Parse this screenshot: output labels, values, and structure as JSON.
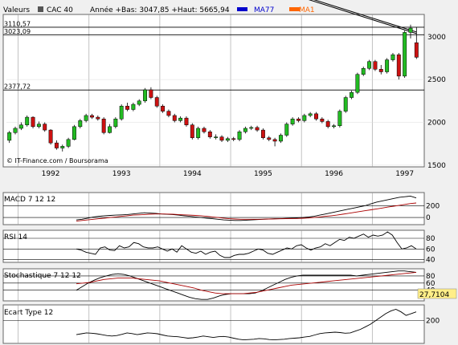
{
  "header": {
    "label": "Valeurs",
    "symbol": "CAC 40",
    "stats": "Année +Bas: 3047,85 +Haut: 5665,94",
    "ma77_label": "MA77",
    "ma1_label": "MA1",
    "ma77_color": "#0000cc",
    "ma1_color": "#ff6600"
  },
  "source": "© IT-Finance.com / Boursorama",
  "colors": {
    "up": "#22bb22",
    "down": "#cc1111",
    "grid": "#999999",
    "panel_bg": "#ffffff",
    "page_bg": "#f0f0f0",
    "border": "#666666",
    "signal": "#aa0000",
    "highlight_box": "#ffee88"
  },
  "chart_data": [
    {
      "type": "candlestick",
      "title": "CAC 40",
      "x": [
        "1991-11",
        "1991-12",
        "1992-01",
        "1992-02",
        "1992-03",
        "1992-04",
        "1992-05",
        "1992-06",
        "1992-07",
        "1992-08",
        "1992-09",
        "1992-10",
        "1992-11",
        "1992-12",
        "1993-01",
        "1993-02",
        "1993-03",
        "1993-04",
        "1993-05",
        "1993-06",
        "1993-07",
        "1993-08",
        "1993-09",
        "1993-10",
        "1993-11",
        "1993-12",
        "1994-01",
        "1994-02",
        "1994-03",
        "1994-04",
        "1994-05",
        "1994-06",
        "1994-07",
        "1994-08",
        "1994-09",
        "1994-10",
        "1994-11",
        "1994-12",
        "1995-01",
        "1995-02",
        "1995-03",
        "1995-04",
        "1995-05",
        "1995-06",
        "1995-07",
        "1995-08",
        "1995-09",
        "1995-10",
        "1995-11",
        "1995-12",
        "1996-01",
        "1996-02",
        "1996-03",
        "1996-04",
        "1996-05",
        "1996-06",
        "1996-07",
        "1996-08",
        "1996-09",
        "1996-10",
        "1996-11",
        "1996-12",
        "1997-01",
        "1997-02",
        "1997-03",
        "1997-04",
        "1997-05",
        "1997-06",
        "1997-07",
        "1997-08"
      ],
      "open": [
        1790,
        1880,
        1930,
        1970,
        2060,
        1950,
        1980,
        1910,
        1760,
        1700,
        1720,
        1800,
        1950,
        2020,
        2080,
        2060,
        2040,
        1880,
        1950,
        2040,
        2190,
        2150,
        2210,
        2250,
        2380,
        2290,
        2190,
        2130,
        2080,
        2020,
        2050,
        1970,
        1820,
        1930,
        1890,
        1830,
        1830,
        1790,
        1810,
        1800,
        1890,
        1930,
        1940,
        1910,
        1820,
        1800,
        1780,
        1850,
        1980,
        2040,
        2020,
        2080,
        2100,
        2040,
        2010,
        1950,
        1960,
        2130,
        2290,
        2350,
        2560,
        2630,
        2710,
        2620,
        2590,
        2730,
        2790,
        2540,
        3050,
        2930
      ],
      "close": [
        1880,
        1930,
        1970,
        2060,
        1950,
        1980,
        1910,
        1760,
        1700,
        1720,
        1800,
        1950,
        2020,
        2080,
        2060,
        2040,
        1880,
        1950,
        2040,
        2190,
        2150,
        2210,
        2250,
        2380,
        2290,
        2190,
        2130,
        2080,
        2020,
        2050,
        1970,
        1820,
        1930,
        1890,
        1830,
        1830,
        1790,
        1810,
        1800,
        1890,
        1930,
        1940,
        1910,
        1820,
        1800,
        1780,
        1850,
        1980,
        2040,
        2020,
        2080,
        2100,
        2040,
        2010,
        1950,
        1960,
        2130,
        2290,
        2350,
        2560,
        2630,
        2710,
        2620,
        2590,
        2730,
        2790,
        2540,
        3050,
        3100,
        2760
      ],
      "high": [
        1900,
        1950,
        2000,
        2080,
        2070,
        2010,
        2000,
        1920,
        1790,
        1740,
        1820,
        1970,
        2040,
        2100,
        2100,
        2080,
        2060,
        1980,
        2060,
        2210,
        2230,
        2230,
        2270,
        2400,
        2410,
        2310,
        2210,
        2150,
        2100,
        2070,
        2070,
        1990,
        1950,
        1950,
        1910,
        1860,
        1850,
        1830,
        1830,
        1910,
        1950,
        1960,
        1960,
        1930,
        1840,
        1820,
        1870,
        2000,
        2060,
        2060,
        2100,
        2120,
        2120,
        2060,
        2030,
        1980,
        2150,
        2310,
        2370,
        2580,
        2650,
        2730,
        2730,
        2670,
        2750,
        2810,
        2810,
        3070,
        3140,
        3110
      ],
      "low": [
        1760,
        1860,
        1910,
        1950,
        1930,
        1930,
        1890,
        1740,
        1680,
        1660,
        1700,
        1790,
        1930,
        2000,
        2040,
        2020,
        1860,
        1870,
        1930,
        2020,
        2130,
        2130,
        2190,
        2230,
        2270,
        2170,
        2110,
        2060,
        2000,
        2000,
        1950,
        1800,
        1800,
        1870,
        1810,
        1800,
        1770,
        1770,
        1780,
        1780,
        1870,
        1910,
        1890,
        1800,
        1780,
        1720,
        1760,
        1830,
        1960,
        2000,
        2000,
        2060,
        2020,
        1990,
        1930,
        1930,
        1940,
        2110,
        2270,
        2330,
        2540,
        2610,
        2600,
        2560,
        2570,
        2710,
        2500,
        2520,
        2980,
        2740
      ],
      "ma77": [
        2120,
        2117,
        2114,
        2111,
        2108,
        2105,
        2102,
        2099,
        2096,
        2093,
        2090,
        2087,
        2084,
        2081,
        2078,
        2075,
        2072,
        2069,
        2066,
        2063,
        2060,
        2057,
        2054,
        2051,
        2048,
        2045,
        2042,
        2039,
        2036,
        2033,
        2030,
        2027,
        2024,
        2021,
        2018,
        2015,
        2012,
        2009,
        2006,
        2003,
        2000,
        1997,
        1994,
        1991,
        1988,
        1985,
        1982,
        1979,
        1976,
        1973,
        1970,
        1967,
        1964,
        1961,
        1958,
        1955,
        1952,
        1949,
        1946,
        1943,
        1940,
        1937,
        1934,
        1931,
        1928,
        1925,
        1922,
        1919,
        1916,
        1913
      ],
      "categories": [
        "1992",
        "1993",
        "1994",
        "1995",
        "1996",
        "1997"
      ],
      "year_start_index": [
        2,
        14,
        26,
        38,
        50,
        62
      ],
      "yticks": [
        1500,
        2000,
        2500,
        3000
      ],
      "ylim": [
        1480,
        3260
      ],
      "levels": [
        {
          "label": "3110,57",
          "value": 3110.57
        },
        {
          "label": "3023,09",
          "value": 3023.09
        },
        {
          "label": "2377,72",
          "value": 2377.72
        }
      ],
      "trendline": {
        "from": [
          31,
          3880
        ],
        "to": [
          69,
          3055
        ]
      },
      "grid": true
    },
    {
      "type": "line",
      "title": "MACD 7 12 12",
      "series": [
        {
          "values": [
            -40,
            -30,
            -10,
            10,
            20,
            30,
            35,
            40,
            45,
            50,
            60,
            70,
            80,
            75,
            70,
            60,
            55,
            50,
            40,
            30,
            20,
            10,
            0,
            -10,
            -20,
            -30,
            -40,
            -45,
            -50,
            -50,
            -45,
            -40,
            -35,
            -30,
            -25,
            -20,
            -20,
            -15,
            -10,
            -5,
            0,
            10,
            20,
            40,
            60,
            80,
            100,
            120,
            140,
            160,
            180,
            200,
            230,
            260,
            280,
            300,
            320,
            340,
            350,
            360,
            330
          ]
        },
        {
          "values": [
            -60,
            -50,
            -40,
            -30,
            -20,
            -10,
            0,
            10,
            20,
            30,
            40,
            45,
            50,
            55,
            60,
            60,
            58,
            55,
            50,
            45,
            40,
            35,
            30,
            20,
            10,
            0,
            -10,
            -20,
            -25,
            -30,
            -30,
            -30,
            -30,
            -28,
            -26,
            -24,
            -22,
            -20,
            -18,
            -16,
            -12,
            -8,
            0,
            10,
            20,
            30,
            40,
            55,
            70,
            85,
            100,
            115,
            130,
            145,
            160,
            175,
            190,
            205,
            220,
            235,
            245
          ]
        }
      ],
      "yticks": [
        0,
        200
      ],
      "ylim": [
        -120,
        420
      ],
      "grid": true
    },
    {
      "type": "line",
      "title": "RSI 14",
      "series": [
        {
          "values": [
            60,
            58,
            54,
            52,
            50,
            62,
            64,
            58,
            57,
            66,
            62,
            64,
            72,
            70,
            64,
            62,
            62,
            64,
            60,
            56,
            60,
            54,
            66,
            60,
            54,
            52,
            56,
            50,
            54,
            56,
            48,
            44,
            44,
            48,
            50,
            50,
            52,
            56,
            60,
            58,
            52,
            50,
            54,
            58,
            62,
            60,
            66,
            68,
            62,
            58,
            62,
            64,
            70,
            66,
            72,
            78,
            76,
            82,
            80,
            84,
            88,
            82,
            86,
            84,
            86,
            92,
            86,
            72,
            60,
            62,
            66,
            60
          ]
        }
      ],
      "yticks": [
        40,
        60,
        80
      ],
      "ylim": [
        35,
        95
      ],
      "grid": true
    },
    {
      "type": "line",
      "title": "Stochastique 7 12 12",
      "series": [
        {
          "values": [
            40,
            50,
            60,
            68,
            75,
            80,
            84,
            86,
            84,
            80,
            74,
            68,
            62,
            56,
            50,
            44,
            38,
            32,
            26,
            20,
            16,
            14,
            14,
            18,
            24,
            28,
            30,
            30,
            30,
            30,
            32,
            38,
            46,
            54,
            62,
            70,
            76,
            80,
            82,
            82,
            82,
            82,
            82,
            82,
            82,
            82,
            82,
            80,
            82,
            84,
            86,
            88,
            90,
            92,
            94,
            94,
            92,
            90
          ]
        },
        {
          "values": [
            58,
            60,
            62,
            66,
            70,
            72,
            74,
            74,
            74,
            72,
            70,
            68,
            66,
            62,
            58,
            54,
            50,
            46,
            40,
            36,
            32,
            30,
            30,
            30,
            30,
            32,
            34,
            38,
            42,
            46,
            50,
            54,
            56,
            58,
            60,
            62,
            64,
            66,
            68,
            70,
            72,
            74,
            76,
            78,
            80,
            82,
            84,
            86,
            88,
            90
          ]
        }
      ],
      "yticks": [
        40,
        60,
        80
      ],
      "ylim": [
        10,
        100
      ],
      "current_value_label": "27,7104",
      "grid": true
    },
    {
      "type": "line",
      "title": "Ecart Type 12",
      "series": [
        {
          "values": [
            120,
            125,
            130,
            128,
            125,
            120,
            115,
            112,
            115,
            122,
            130,
            126,
            120,
            125,
            130,
            128,
            125,
            118,
            112,
            110,
            108,
            104,
            100,
            102,
            106,
            112,
            108,
            104,
            108,
            110,
            106,
            100,
            94,
            90,
            92,
            94,
            98,
            96,
            92,
            90,
            92,
            94,
            98,
            100,
            102,
            106,
            110,
            118,
            126,
            130,
            132,
            134,
            132,
            128,
            130,
            140,
            150,
            165,
            180,
            200,
            220,
            240,
            255,
            265,
            250,
            230,
            240,
            250
          ]
        }
      ],
      "yticks": [
        200
      ],
      "ylim": [
        70,
        290
      ],
      "grid": true
    }
  ]
}
